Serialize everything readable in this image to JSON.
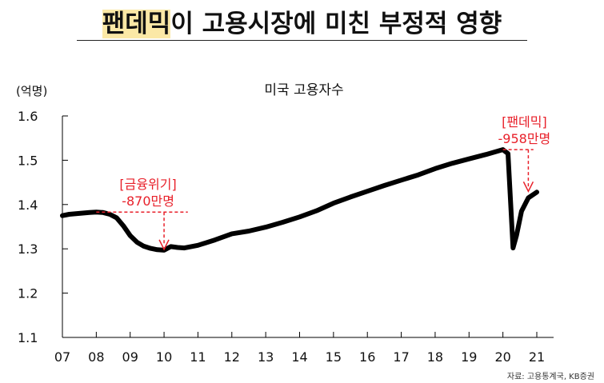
{
  "header": {
    "title_highlight": "팬데믹",
    "title_rest": "이 고용시장에 미친 부정적 영향"
  },
  "footer": {
    "source": "자료: 고용통계국, KB증권"
  },
  "colors": {
    "line": "#000000",
    "annotation": "#e8202a",
    "highlight": "#fbe8a6"
  },
  "chart_data": {
    "type": "line",
    "title": "미국 고용자수",
    "ylabel": "(억명)",
    "xlabel": "",
    "ylim": [
      1.1,
      1.6
    ],
    "yticks": [
      1.6,
      1.5,
      1.4,
      1.3,
      1.2,
      1.1
    ],
    "ytick_labels": [
      "1.6",
      "1.5",
      "1.4",
      "1.3",
      "1.2",
      "1.1"
    ],
    "xlim": [
      2007.0,
      2021.2
    ],
    "xticks": [
      2007,
      2008,
      2009,
      2010,
      2011,
      2012,
      2013,
      2014,
      2015,
      2016,
      2017,
      2018,
      2019,
      2020,
      2021
    ],
    "xtick_labels": [
      "07",
      "08",
      "09",
      "10",
      "11",
      "12",
      "13",
      "14",
      "15",
      "16",
      "17",
      "18",
      "19",
      "20",
      "21"
    ],
    "grid": false,
    "legend": "none",
    "x": [
      2007.0,
      2007.2,
      2007.5,
      2007.8,
      2008.0,
      2008.2,
      2008.4,
      2008.6,
      2008.8,
      2009.0,
      2009.2,
      2009.4,
      2009.6,
      2009.8,
      2010.0,
      2010.2,
      2010.4,
      2010.6,
      2010.8,
      2011.0,
      2011.5,
      2012.0,
      2012.5,
      2013.0,
      2013.5,
      2014.0,
      2014.5,
      2015.0,
      2015.5,
      2016.0,
      2016.5,
      2017.0,
      2017.5,
      2018.0,
      2018.5,
      2019.0,
      2019.5,
      2020.0,
      2020.15,
      2020.3,
      2020.4,
      2020.55,
      2020.75,
      2021.0
    ],
    "values": [
      1.375,
      1.378,
      1.38,
      1.382,
      1.383,
      1.382,
      1.378,
      1.37,
      1.352,
      1.33,
      1.315,
      1.306,
      1.301,
      1.298,
      1.297,
      1.305,
      1.303,
      1.302,
      1.305,
      1.308,
      1.32,
      1.334,
      1.34,
      1.349,
      1.36,
      1.372,
      1.386,
      1.403,
      1.417,
      1.43,
      1.443,
      1.455,
      1.467,
      1.481,
      1.493,
      1.503,
      1.513,
      1.524,
      1.515,
      1.302,
      1.33,
      1.385,
      1.415,
      1.428
    ],
    "annotations": [
      {
        "label": "[금융위기]",
        "sublabel": "-870만명",
        "x_start": 2008.0,
        "x_end": 2010.7,
        "y_top": 1.383,
        "y_bottom": 1.297,
        "x_arrow": 2010.0
      },
      {
        "label": "[팬데믹]",
        "sublabel": "-958만명",
        "x_start": 2020.0,
        "x_end": 2020.9,
        "y_top": 1.524,
        "y_bottom": 1.428,
        "x_arrow": 2020.75
      }
    ]
  }
}
